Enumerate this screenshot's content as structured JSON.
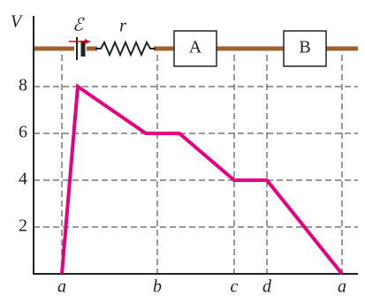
{
  "chart_data": {
    "type": "line",
    "y_label": "V",
    "emf_label": "ℰ",
    "resistor_label": "r",
    "boxes": [
      "A",
      "B"
    ],
    "x": [
      0,
      18,
      95,
      133,
      195,
      232,
      317
    ],
    "series": [
      {
        "color": "#e6007e",
        "values": [
          0,
          8,
          6,
          6,
          4,
          4,
          0
        ]
      }
    ],
    "xlim": [
      -32,
      335
    ],
    "ylim": [
      0,
      11
    ],
    "yticks": [
      2,
      4,
      6,
      8
    ],
    "xticks": [
      {
        "value": 0,
        "label": "a"
      },
      {
        "value": 108,
        "label": "b"
      },
      {
        "value": 195,
        "label": "c"
      },
      {
        "value": 232,
        "label": "d"
      },
      {
        "value": 317,
        "label": "a"
      }
    ],
    "grid": true
  }
}
